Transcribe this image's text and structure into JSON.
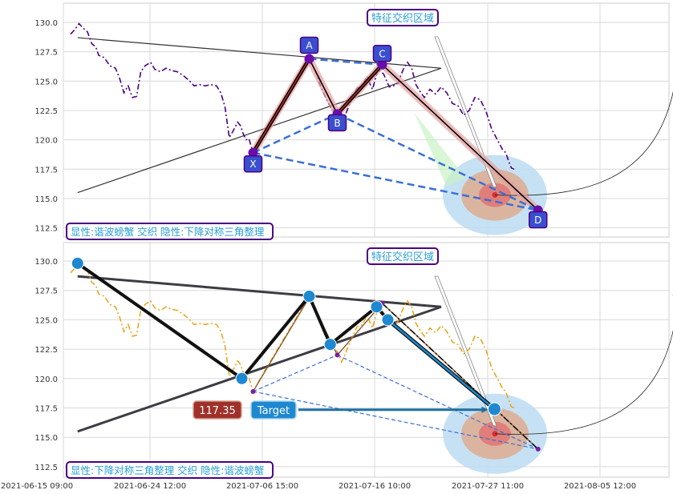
{
  "chart_data": [
    {
      "type": "line",
      "panel": "top",
      "x_ticks": [
        "2021-06-15 09:00",
        "2021-06-24 12:00",
        "2021-07-06 15:00",
        "2021-07-16 10:00",
        "2021-07-27 11:00",
        "2021-08-05 12:00"
      ],
      "ylim": [
        112.0,
        131.5
      ],
      "y_ticks": [
        "112.5",
        "115.0",
        "117.5",
        "120.0",
        "122.5",
        "125.0",
        "127.5",
        "130.0"
      ],
      "grid": true,
      "series": [
        {
          "line_style": "dashdot",
          "color": "#4b0082",
          "points": [
            [
              0.0,
              129.0
            ],
            [
              0.3,
              129.4
            ],
            [
              0.6,
              129.9
            ],
            [
              0.9,
              129.5
            ],
            [
              1.2,
              129.2
            ],
            [
              1.5,
              128.2
            ],
            [
              1.8,
              127.9
            ],
            [
              2.0,
              127.2
            ],
            [
              2.4,
              127.0
            ],
            [
              2.8,
              126.3
            ],
            [
              3.2,
              126.1
            ],
            [
              3.5,
              125.2
            ],
            [
              3.8,
              124.0
            ],
            [
              4.1,
              124.6
            ],
            [
              4.4,
              123.6
            ],
            [
              4.7,
              123.7
            ],
            [
              5.0,
              125.8
            ],
            [
              5.3,
              126.3
            ],
            [
              5.7,
              126.6
            ],
            [
              6.0,
              126.0
            ],
            [
              6.4,
              125.8
            ],
            [
              6.8,
              126.1
            ],
            [
              7.2,
              125.9
            ],
            [
              7.6,
              125.8
            ],
            [
              8.0,
              125.5
            ],
            [
              8.4,
              125.1
            ],
            [
              8.8,
              124.6
            ],
            [
              9.2,
              124.7
            ],
            [
              9.6,
              124.6
            ],
            [
              10.0,
              124.7
            ],
            [
              10.4,
              124.6
            ],
            [
              10.7,
              124.0
            ],
            [
              11.0,
              122.8
            ],
            [
              11.3,
              120.2
            ],
            [
              11.6,
              120.8
            ],
            [
              11.9,
              121.5
            ],
            [
              12.1,
              121.2
            ],
            [
              12.3,
              120.5
            ],
            [
              12.5,
              120.0
            ],
            [
              12.7,
              120.1
            ],
            [
              13.0,
              118.9
            ],
            [
              14.0,
              121.0
            ],
            [
              15.0,
              123.0
            ],
            [
              16.0,
              125.0
            ],
            [
              16.6,
              126.3
            ],
            [
              17.0,
              126.7
            ],
            [
              17.4,
              126.0
            ],
            [
              17.8,
              124.6
            ],
            [
              18.2,
              123.5
            ],
            [
              18.6,
              122.6
            ],
            [
              19.0,
              122.3
            ],
            [
              19.3,
              121.4
            ],
            [
              19.6,
              122.2
            ],
            [
              20.0,
              123.4
            ],
            [
              20.4,
              124.4
            ],
            [
              20.8,
              124.6
            ],
            [
              21.1,
              125.4
            ],
            [
              21.5,
              124.3
            ],
            [
              21.9,
              126.0
            ],
            [
              22.3,
              125.6
            ],
            [
              22.7,
              124.5
            ],
            [
              23.0,
              124.6
            ],
            [
              23.3,
              124.8
            ],
            [
              23.7,
              126.0
            ],
            [
              24.0,
              126.6
            ],
            [
              24.3,
              126.1
            ],
            [
              24.6,
              124.7
            ],
            [
              24.9,
              124.1
            ],
            [
              25.2,
              123.6
            ],
            [
              25.6,
              124.3
            ],
            [
              26.0,
              123.9
            ],
            [
              26.4,
              124.5
            ],
            [
              26.8,
              124.0
            ],
            [
              27.2,
              123.1
            ],
            [
              27.6,
              122.9
            ],
            [
              28.0,
              122.1
            ],
            [
              28.4,
              122.5
            ],
            [
              28.8,
              123.6
            ],
            [
              29.2,
              123.4
            ],
            [
              29.6,
              122.4
            ],
            [
              30.0,
              120.9
            ],
            [
              30.4,
              120.0
            ],
            [
              30.8,
              119.1
            ],
            [
              31.0,
              118.9
            ],
            [
              31.2,
              118.2
            ],
            [
              31.4,
              117.6
            ],
            [
              31.6,
              117.5
            ]
          ]
        }
      ],
      "harmonic_pattern": {
        "points": [
          {
            "label": "X",
            "x": 13.0,
            "y": 118.9
          },
          {
            "label": "A",
            "x": 17.0,
            "y": 126.9
          },
          {
            "label": "B",
            "x": 19.0,
            "y": 122.2
          },
          {
            "label": "C",
            "x": 22.2,
            "y": 126.4
          },
          {
            "label": "D",
            "x": 33.3,
            "y": 114.0
          }
        ]
      },
      "triangle": {
        "upper": {
          "from": [
            0.5,
            128.7
          ],
          "to": [
            26.4,
            126.1
          ]
        },
        "lower": {
          "from": [
            0.5,
            115.5
          ],
          "to": [
            26.4,
            126.1
          ]
        }
      },
      "target_zone": {
        "x": 30.2,
        "y": 115.3
      },
      "arc": {
        "from": [
          30.2,
          115.3
        ],
        "to": [
          43.3,
          127.3
        ]
      },
      "annotations": {
        "zone_label": "特征交织区域",
        "legend_text": "显性:谐波螃蟹 交织 隐性:下降对称三角整理"
      }
    },
    {
      "type": "line",
      "panel": "bottom",
      "x_ticks": [
        "2021-06-15 09:00",
        "2021-06-24 12:00",
        "2021-07-06 15:00",
        "2021-07-16 10:00",
        "2021-07-27 11:00",
        "2021-08-05 12:00"
      ],
      "ylim": [
        112.0,
        131.5
      ],
      "y_ticks": [
        "112.5",
        "115.0",
        "117.5",
        "120.0",
        "122.5",
        "125.0",
        "127.5",
        "130.0"
      ],
      "grid": true,
      "series": [
        {
          "line_style": "dashdot",
          "color": "#e8a317",
          "points": "same_as_top_panel"
        }
      ],
      "triangle_zigzag": [
        [
          0.5,
          129.8
        ],
        [
          12.2,
          120.0
        ],
        [
          17.0,
          127.0
        ],
        [
          18.5,
          122.9
        ],
        [
          21.8,
          126.1
        ],
        [
          22.6,
          125.0
        ],
        [
          30.2,
          117.4
        ]
      ],
      "harmonic_pattern": {
        "points": [
          {
            "x": 13.0,
            "y": 118.9
          },
          {
            "x": 17.0,
            "y": 126.9
          },
          {
            "x": 19.0,
            "y": 122.0
          },
          {
            "x": 22.2,
            "y": 126.4
          },
          {
            "x": 33.3,
            "y": 114.0
          }
        ]
      },
      "target": {
        "value_label": "117.35",
        "button_label": "Target",
        "y": 117.35
      },
      "annotations": {
        "zone_label": "特征交织区域",
        "legend_text": "显性:下降对称三角整理 交织 隐性:谐波螃蟹"
      }
    }
  ],
  "labels": {
    "top_zone_label": "特征交织区域",
    "top_legend": "显性:谐波螃蟹 交织 隐性:下降对称三角整理",
    "bottom_zone_label": "特征交织区域",
    "bottom_legend": "显性:下降对称三角整理 交织 隐性:谐波螃蟹",
    "target_value": "117.35",
    "target_button": "Target",
    "pattern_points": [
      "X",
      "A",
      "B",
      "C",
      "D"
    ]
  },
  "colors": {
    "pattern_fill": "#cd5c5c",
    "dashed_link": "#3a6fd8",
    "label_box": "#3a4fd0",
    "point_purple": "#6a0dad",
    "zone_blue": "#bcdcf2",
    "zone_orange": "#e0a98a",
    "zone_red": "#e07070",
    "bottom_node": "#1e88d0",
    "target_red": "#a0302a",
    "target_blue": "#1e88d0",
    "annotation_border": "#4b0082",
    "annotation_text": "#2a9fd6"
  }
}
